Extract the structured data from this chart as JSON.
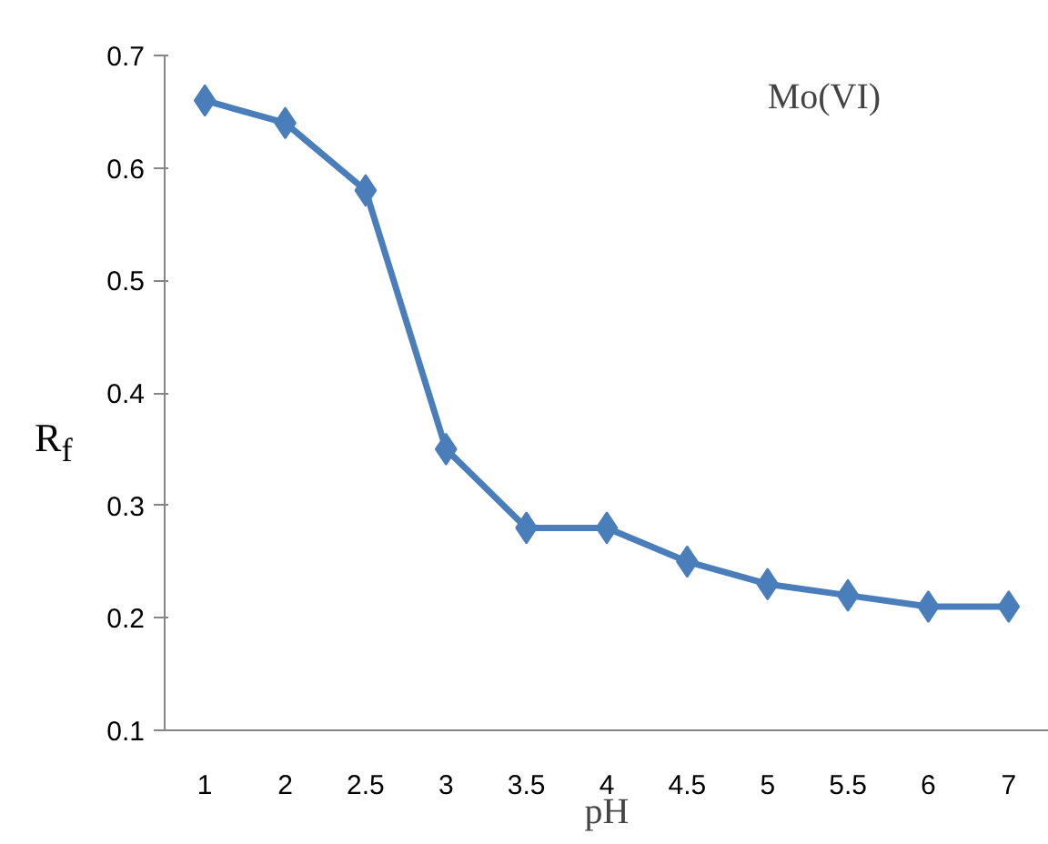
{
  "chart_data": {
    "type": "line",
    "categories": [
      "1",
      "2",
      "2.5",
      "3",
      "3.5",
      "4",
      "4.5",
      "5",
      "5.5",
      "6",
      "7"
    ],
    "series": [
      {
        "color": "#4a7ebb",
        "values": [
          0.66,
          0.64,
          0.58,
          0.35,
          0.28,
          0.28,
          0.25,
          0.23,
          0.22,
          0.21,
          0.21
        ]
      }
    ],
    "xlabel": "pH",
    "ylabel": "R$_{f}$",
    "annotations": [
      "Mo(VI)"
    ],
    "ylim": [
      0.1,
      0.7
    ],
    "yticks": [
      0.1,
      0.2,
      0.3,
      0.4,
      0.5,
      0.6,
      0.7
    ],
    "grid": false,
    "marker": "diamond",
    "line_style": "solid"
  }
}
